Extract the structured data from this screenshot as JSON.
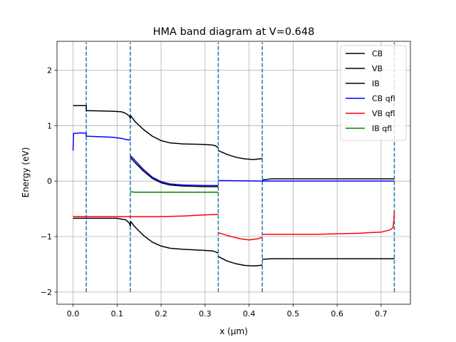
{
  "chart_data": {
    "type": "line",
    "title": "HMA band diagram at V=0.648",
    "xlabel": "x (μm)",
    "ylabel": "Energy (eV)",
    "xlim": [
      -0.0365,
      0.7665
    ],
    "ylim": [
      -2.22,
      2.52
    ],
    "xticks": [
      0.0,
      0.1,
      0.2,
      0.3,
      0.4,
      0.5,
      0.6,
      0.7
    ],
    "xtick_labels": [
      "0.0",
      "0.1",
      "0.2",
      "0.3",
      "0.4",
      "0.5",
      "0.6",
      "0.7"
    ],
    "yticks": [
      -2,
      -1,
      0,
      1,
      2
    ],
    "ytick_labels": [
      "−2",
      "−1",
      "0",
      "1",
      "2"
    ],
    "grid": true,
    "legend_position": "top-right",
    "boundaries": {
      "x": [
        0.03,
        0.13,
        0.33,
        0.43,
        0.73
      ],
      "y_range": [
        -2.0,
        2.5
      ],
      "color": "#1f77b4",
      "style": "dashed"
    },
    "series": [
      {
        "name": "CB",
        "color": "#000000",
        "segments": [
          [
            [
              0.0,
              1.36
            ],
            [
              0.03,
              1.36
            ],
            [
              0.03,
              1.27
            ],
            [
              0.09,
              1.26
            ],
            [
              0.11,
              1.25
            ],
            [
              0.12,
              1.22
            ],
            [
              0.128,
              1.17
            ],
            [
              0.13,
              1.13
            ],
            [
              0.131,
              1.18
            ],
            [
              0.14,
              1.08
            ],
            [
              0.16,
              0.93
            ],
            [
              0.18,
              0.81
            ],
            [
              0.2,
              0.73
            ],
            [
              0.22,
              0.69
            ],
            [
              0.25,
              0.67
            ],
            [
              0.3,
              0.66
            ],
            [
              0.318,
              0.65
            ],
            [
              0.325,
              0.63
            ],
            [
              0.33,
              0.6
            ]
          ],
          [
            [
              0.33,
              0.55
            ],
            [
              0.35,
              0.48
            ],
            [
              0.37,
              0.43
            ],
            [
              0.39,
              0.4
            ],
            [
              0.41,
              0.39
            ],
            [
              0.425,
              0.4
            ],
            [
              0.43,
              0.41
            ]
          ],
          [
            [
              0.43,
              0.02
            ],
            [
              0.45,
              0.04
            ],
            [
              0.55,
              0.04
            ],
            [
              0.65,
              0.04
            ],
            [
              0.73,
              0.04
            ]
          ]
        ]
      },
      {
        "name": "VB",
        "color": "#000000",
        "segments": [
          [
            [
              0.0,
              -0.67
            ],
            [
              0.03,
              -0.67
            ],
            [
              0.1,
              -0.67
            ],
            [
              0.12,
              -0.7
            ],
            [
              0.128,
              -0.76
            ],
            [
              0.13,
              -0.81
            ],
            [
              0.131,
              -0.73
            ],
            [
              0.14,
              -0.82
            ],
            [
              0.16,
              -0.98
            ],
            [
              0.18,
              -1.1
            ],
            [
              0.2,
              -1.17
            ],
            [
              0.22,
              -1.21
            ],
            [
              0.25,
              -1.23
            ],
            [
              0.3,
              -1.25
            ],
            [
              0.318,
              -1.26
            ],
            [
              0.325,
              -1.28
            ],
            [
              0.33,
              -1.3
            ]
          ],
          [
            [
              0.33,
              -1.36
            ],
            [
              0.35,
              -1.44
            ],
            [
              0.37,
              -1.49
            ],
            [
              0.39,
              -1.52
            ],
            [
              0.41,
              -1.53
            ],
            [
              0.425,
              -1.52
            ],
            [
              0.43,
              -1.51
            ]
          ],
          [
            [
              0.43,
              -1.41
            ],
            [
              0.45,
              -1.4
            ],
            [
              0.55,
              -1.4
            ],
            [
              0.65,
              -1.4
            ],
            [
              0.73,
              -1.4
            ]
          ]
        ]
      },
      {
        "name": "IB",
        "color": "#000000",
        "segments": [
          [
            [
              0.13,
              0.43
            ],
            [
              0.14,
              0.34
            ],
            [
              0.16,
              0.18
            ],
            [
              0.18,
              0.05
            ],
            [
              0.2,
              -0.03
            ],
            [
              0.22,
              -0.07
            ],
            [
              0.25,
              -0.09
            ],
            [
              0.3,
              -0.1
            ],
            [
              0.33,
              -0.1
            ]
          ]
        ]
      },
      {
        "name": "CB qfl",
        "color": "#0000ff",
        "segments": [
          [
            [
              0.0,
              0.55
            ],
            [
              0.001,
              0.86
            ],
            [
              0.02,
              0.87
            ],
            [
              0.03,
              0.86
            ],
            [
              0.03,
              0.81
            ],
            [
              0.09,
              0.79
            ],
            [
              0.11,
              0.77
            ],
            [
              0.12,
              0.75
            ],
            [
              0.13,
              0.74
            ]
          ],
          [
            [
              0.13,
              0.46
            ],
            [
              0.14,
              0.38
            ],
            [
              0.16,
              0.21
            ],
            [
              0.18,
              0.07
            ],
            [
              0.2,
              -0.01
            ],
            [
              0.22,
              -0.05
            ],
            [
              0.25,
              -0.07
            ],
            [
              0.3,
              -0.08
            ],
            [
              0.33,
              -0.08
            ]
          ],
          [
            [
              0.33,
              0.01
            ],
            [
              0.43,
              0.0
            ],
            [
              0.55,
              0.0
            ],
            [
              0.73,
              0.0
            ]
          ]
        ]
      },
      {
        "name": "VB qfl",
        "color": "#ff0000",
        "segments": [
          [
            [
              0.0,
              -0.64
            ],
            [
              0.1,
              -0.64
            ],
            [
              0.2,
              -0.64
            ],
            [
              0.25,
              -0.63
            ],
            [
              0.3,
              -0.61
            ],
            [
              0.33,
              -0.6
            ]
          ],
          [
            [
              0.33,
              -0.93
            ],
            [
              0.35,
              -0.98
            ],
            [
              0.38,
              -1.04
            ],
            [
              0.4,
              -1.06
            ],
            [
              0.42,
              -1.04
            ],
            [
              0.43,
              -1.01
            ]
          ],
          [
            [
              0.43,
              -0.96
            ],
            [
              0.55,
              -0.96
            ],
            [
              0.65,
              -0.94
            ],
            [
              0.7,
              -0.92
            ],
            [
              0.72,
              -0.88
            ],
            [
              0.727,
              -0.84
            ],
            [
              0.729,
              -0.7
            ],
            [
              0.73,
              -0.55
            ]
          ]
        ]
      },
      {
        "name": "IB qfl",
        "color": "#008000",
        "segments": [
          [
            [
              0.13,
              -0.19
            ],
            [
              0.14,
              -0.2
            ],
            [
              0.16,
              -0.2
            ],
            [
              0.2,
              -0.2
            ],
            [
              0.25,
              -0.2
            ],
            [
              0.3,
              -0.2
            ],
            [
              0.33,
              -0.2
            ]
          ]
        ]
      }
    ]
  }
}
